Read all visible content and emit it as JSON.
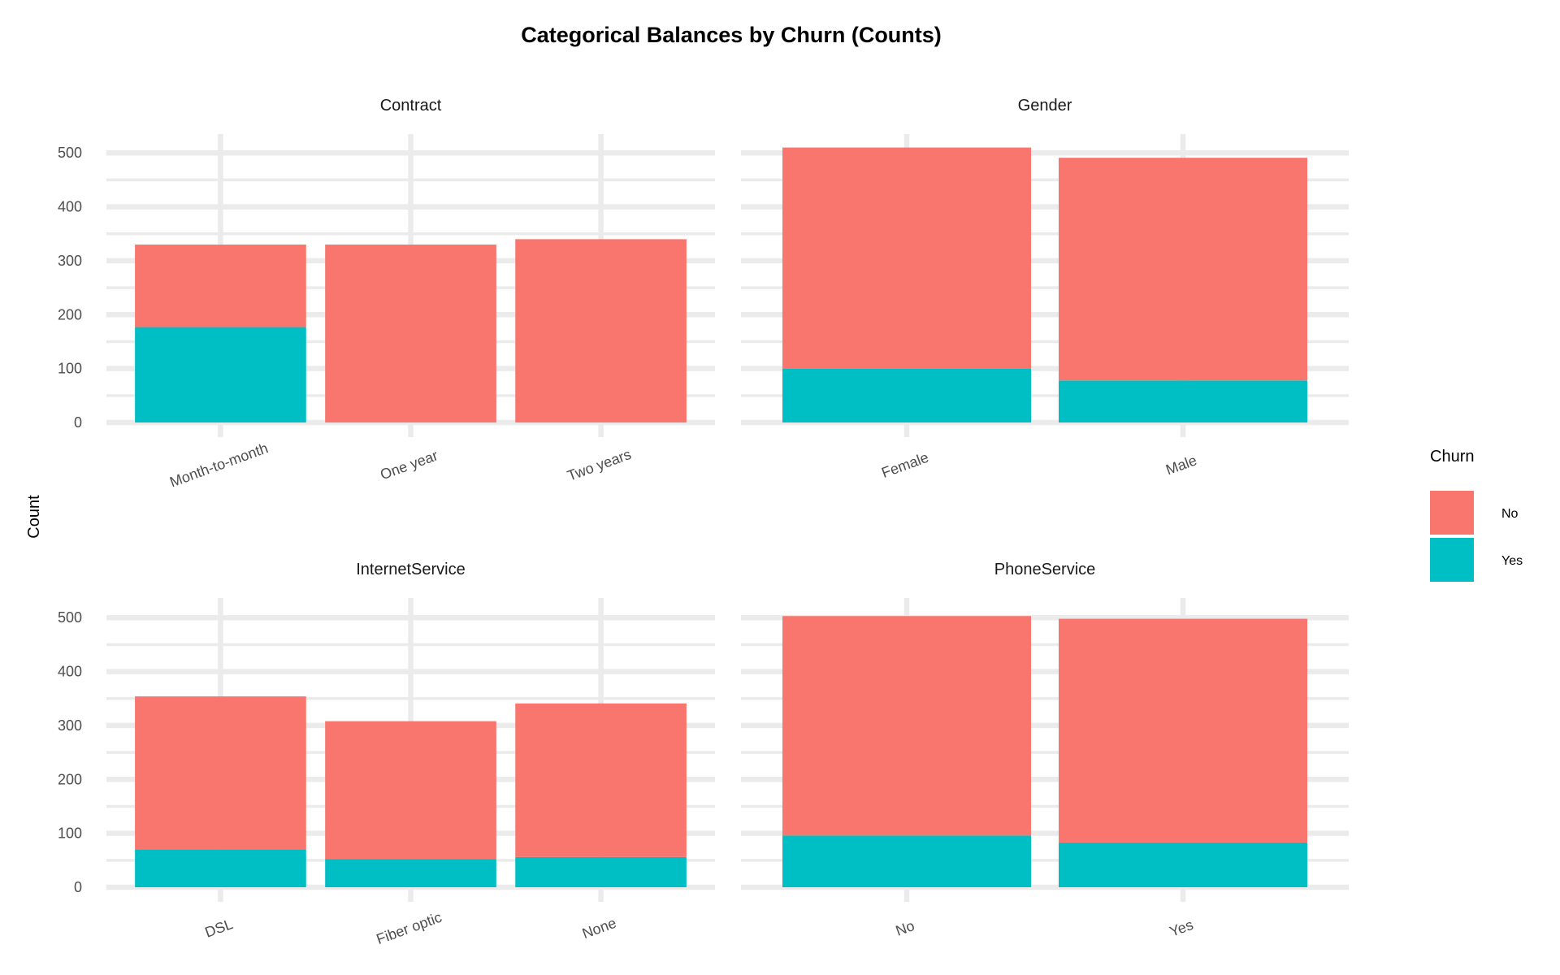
{
  "chart_data": {
    "type": "bar",
    "stacked": true,
    "title": "Categorical Balances by Churn (Counts)",
    "ylabel": "Count",
    "xlabel": "",
    "ylim": [
      0,
      535
    ],
    "yticks": [
      0,
      100,
      200,
      300,
      400,
      500
    ],
    "grid": true,
    "legend": {
      "title": "Churn",
      "placement": "right",
      "entries": [
        "No",
        "Yes"
      ]
    },
    "colors": {
      "No": "#F8766D",
      "Yes": "#00BFC4"
    },
    "panels": [
      {
        "name": "Contract",
        "categories": [
          "Month-to-month",
          "One year",
          "Two years"
        ],
        "series": [
          {
            "name": "Yes",
            "values": [
              177,
              0,
              0
            ]
          },
          {
            "name": "No",
            "values": [
              153,
              330,
              340
            ]
          }
        ]
      },
      {
        "name": "Gender",
        "categories": [
          "Female",
          "Male"
        ],
        "series": [
          {
            "name": "Yes",
            "values": [
              100,
              78
            ]
          },
          {
            "name": "No",
            "values": [
              410,
              413
            ]
          }
        ]
      },
      {
        "name": "InternetService",
        "categories": [
          "DSL",
          "Fiber optic",
          "None"
        ],
        "series": [
          {
            "name": "Yes",
            "values": [
              70,
              52,
              56
            ]
          },
          {
            "name": "No",
            "values": [
              284,
              256,
              285
            ]
          }
        ]
      },
      {
        "name": "PhoneService",
        "categories": [
          "No",
          "Yes"
        ],
        "series": [
          {
            "name": "Yes",
            "values": [
              96,
              83
            ]
          },
          {
            "name": "No",
            "values": [
              407,
              415
            ]
          }
        ]
      }
    ]
  }
}
